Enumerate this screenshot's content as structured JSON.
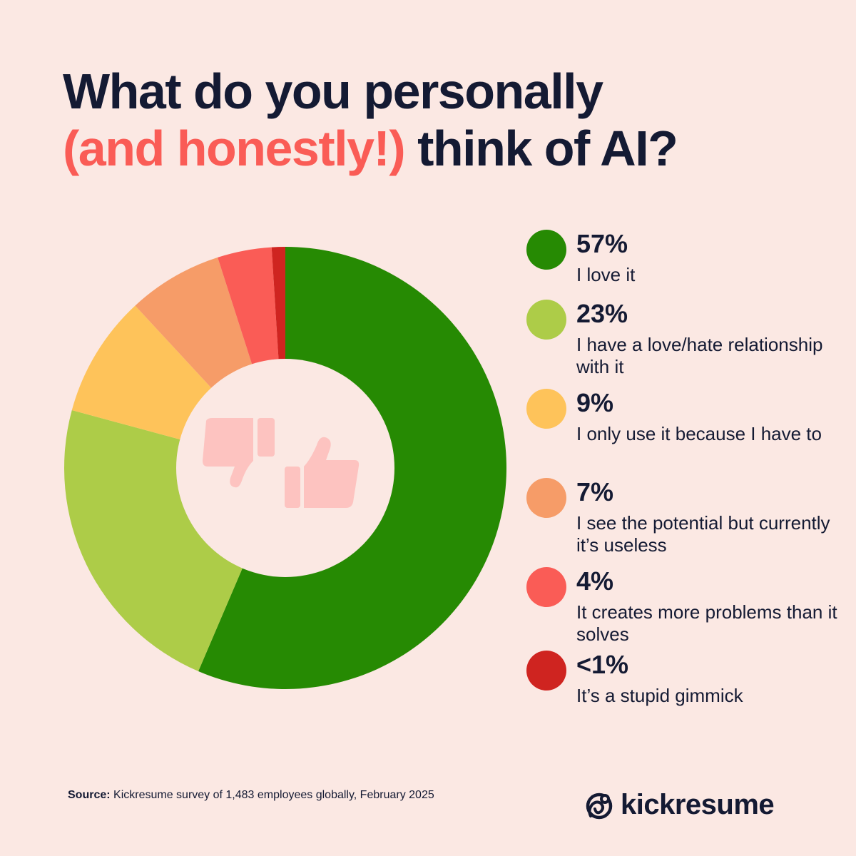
{
  "header": {
    "title_line1": "What do you personally",
    "title_accent": "(and honestly!)",
    "title_rest": " think of AI?"
  },
  "chart_data": {
    "type": "pie",
    "donut": true,
    "categories": [
      "I love it",
      "I have a love/hate relationship with it",
      "I only use it because I have to",
      "I see the potential but currently it’s useless",
      "It creates more problems than it solves",
      "It’s a stupid gimmick"
    ],
    "values": [
      57,
      23,
      9,
      7,
      4,
      1
    ],
    "value_labels": [
      "57%",
      "23%",
      "9%",
      "7%",
      "4%",
      "<1%"
    ],
    "colors": [
      "#268a03",
      "#adcc48",
      "#fec35a",
      "#f69c68",
      "#fa5c56",
      "#cf2420"
    ],
    "legend_position": "right"
  },
  "legend": [
    {
      "pct": "57%",
      "label": "I love it",
      "color": "#268a03"
    },
    {
      "pct": "23%",
      "label": "I have a love/hate relationship with it",
      "color": "#adcc48"
    },
    {
      "pct": "9%",
      "label": "I only use it because I have to",
      "color": "#fec35a"
    },
    {
      "pct": "7%",
      "label": "I see the potential but currently it’s useless",
      "color": "#f69c68"
    },
    {
      "pct": "4%",
      "label": "It creates more problems than it solves",
      "color": "#fa5c56"
    },
    {
      "pct": "<1%",
      "label": "It’s a stupid gimmick",
      "color": "#cf2420"
    }
  ],
  "center_icons": [
    "thumbs-down-icon",
    "thumbs-up-icon"
  ],
  "footer": {
    "source_label": "Source:",
    "source_text": " Kickresume survey of 1,483 employees globally, February 2025",
    "brand": "kickresume"
  },
  "colors": {
    "background": "#fbe8e3",
    "text": "#141a33",
    "accent": "#fa5c56",
    "icon": "#fdc3c0"
  }
}
